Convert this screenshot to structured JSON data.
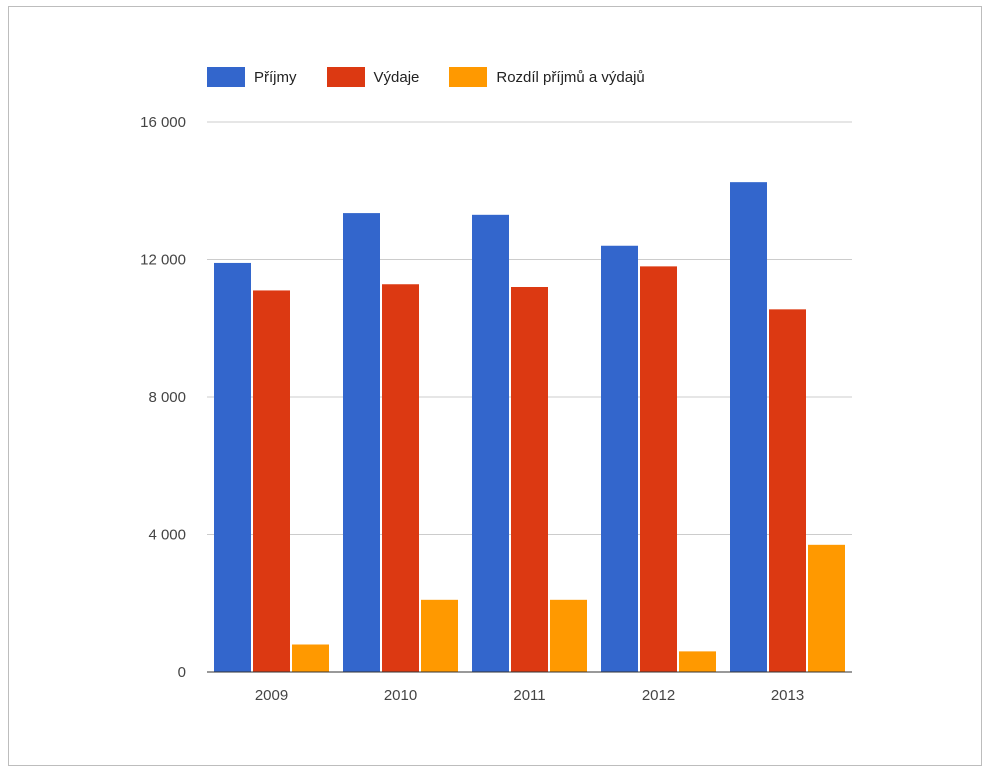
{
  "chart_data": {
    "type": "bar",
    "categories": [
      "2009",
      "2010",
      "2011",
      "2012",
      "2013"
    ],
    "series": [
      {
        "name": "Příjmy",
        "color": "#3366cc",
        "values": [
          11900,
          13350,
          13300,
          12400,
          14250
        ]
      },
      {
        "name": "Výdaje",
        "color": "#dc3912",
        "values": [
          11100,
          11280,
          11200,
          11800,
          10550
        ]
      },
      {
        "name": "Rozdíl příjmů a výdajů",
        "color": "#ff9900",
        "values": [
          800,
          2100,
          2100,
          600,
          3700
        ]
      }
    ],
    "yticks": [
      0,
      4000,
      8000,
      12000,
      16000
    ],
    "ytick_labels": [
      "0",
      "4 000",
      "8 000",
      "12 000",
      "16 000"
    ],
    "ylim": [
      0,
      16000
    ],
    "grid": true,
    "legend_position": "top",
    "title": "",
    "xlabel": "",
    "ylabel": ""
  }
}
